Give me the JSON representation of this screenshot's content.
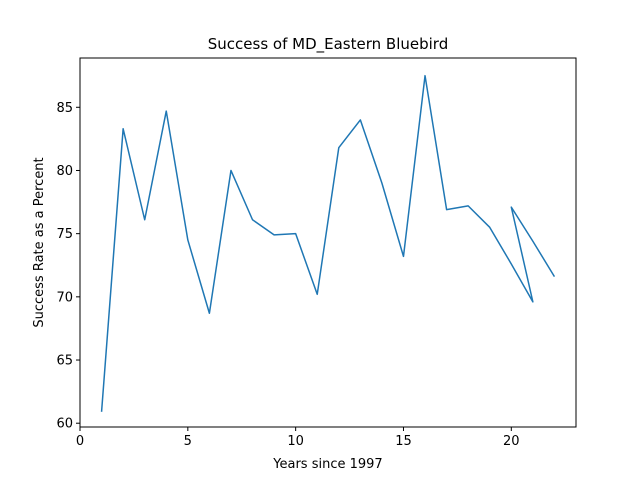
{
  "chart_data": {
    "type": "line",
    "title": "Success of MD_Eastern Bluebird",
    "xlabel": "Years since 1997",
    "ylabel": "Success Rate as a Percent",
    "xlim": [
      0,
      23
    ],
    "ylim": [
      59.7,
      88.9
    ],
    "xticks": [
      0,
      5,
      10,
      15,
      20
    ],
    "yticks": [
      60,
      65,
      70,
      75,
      80,
      85
    ],
    "grid": false,
    "legend": "none",
    "series": [
      {
        "color": "#1f77b4",
        "x": [
          1,
          2,
          3,
          4,
          5,
          6,
          7,
          8,
          9,
          10,
          11,
          12,
          13,
          14,
          15,
          16,
          17,
          18,
          19,
          20,
          21,
          20,
          21,
          22
        ],
        "y": [
          60.9,
          83.3,
          76.1,
          84.7,
          74.5,
          68.7,
          80.0,
          76.1,
          74.9,
          75.0,
          70.2,
          81.8,
          84.0,
          79.0,
          73.2,
          87.5,
          76.9,
          77.2,
          75.5,
          72.6,
          69.6,
          77.1,
          74.4,
          71.6
        ]
      }
    ]
  }
}
